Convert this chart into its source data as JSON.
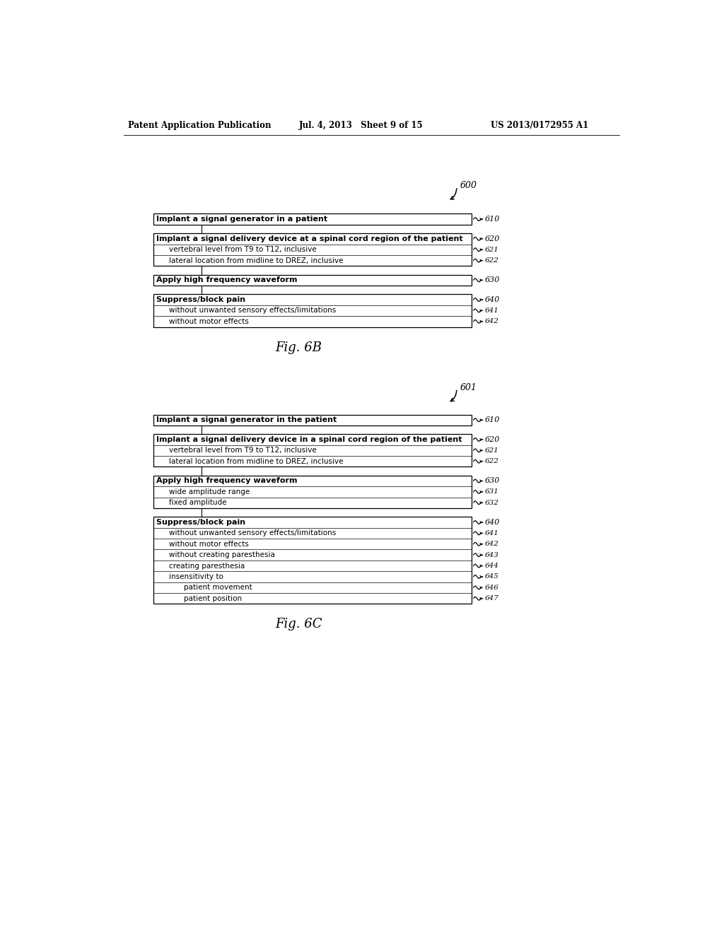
{
  "bg_color": "#ffffff",
  "header_left": "Patent Application Publication",
  "header_mid": "Jul. 4, 2013   Sheet 9 of 15",
  "header_right": "US 2013/0172955 A1",
  "fig6b_label": "Fig. 6B",
  "fig6b_ref": "600",
  "fig6b_boxes": [
    {
      "label": "Implant a signal generator in a patient",
      "ref": "610",
      "level": 0,
      "bold": true
    },
    {
      "label": "Implant a signal delivery device at a spinal cord region of the patient",
      "ref": "620",
      "level": 0,
      "bold": true
    },
    {
      "label": "vertebral level from T9 to T12, inclusive",
      "ref": "621",
      "level": 1,
      "bold": false
    },
    {
      "label": "lateral location from midline to DREZ, inclusive",
      "ref": "622",
      "level": 1,
      "bold": false
    },
    {
      "label": "Apply high frequency waveform",
      "ref": "630",
      "level": 0,
      "bold": true
    },
    {
      "label": "Suppress/block pain",
      "ref": "640",
      "level": 0,
      "bold": true
    },
    {
      "label": "without unwanted sensory effects/limitations",
      "ref": "641",
      "level": 1,
      "bold": false
    },
    {
      "label": "without motor effects",
      "ref": "642",
      "level": 1,
      "bold": false
    }
  ],
  "fig6c_label": "Fig. 6C",
  "fig6c_ref": "601",
  "fig6c_boxes": [
    {
      "label": "Implant a signal generator in the patient",
      "ref": "610",
      "level": 0,
      "bold": true
    },
    {
      "label": "Implant a signal delivery device in a spinal cord region of the patient",
      "ref": "620",
      "level": 0,
      "bold": true
    },
    {
      "label": "vertebral level from T9 to T12, inclusive",
      "ref": "621",
      "level": 1,
      "bold": false
    },
    {
      "label": "lateral location from midline to DREZ, inclusive",
      "ref": "622",
      "level": 1,
      "bold": false
    },
    {
      "label": "Apply high frequency waveform",
      "ref": "630",
      "level": 0,
      "bold": true
    },
    {
      "label": "wide amplitude range",
      "ref": "631",
      "level": 1,
      "bold": false
    },
    {
      "label": "fixed amplitude",
      "ref": "632",
      "level": 1,
      "bold": false
    },
    {
      "label": "Suppress/block pain",
      "ref": "640",
      "level": 0,
      "bold": true
    },
    {
      "label": "without unwanted sensory effects/limitations",
      "ref": "641",
      "level": 1,
      "bold": false
    },
    {
      "label": "without motor effects",
      "ref": "642",
      "level": 1,
      "bold": false
    },
    {
      "label": "without creating paresthesia",
      "ref": "643",
      "level": 1,
      "bold": false
    },
    {
      "label": "creating paresthesia",
      "ref": "644",
      "level": 1,
      "bold": false
    },
    {
      "label": "insensitivity to",
      "ref": "645",
      "level": 1,
      "bold": false
    },
    {
      "label": "patient movement",
      "ref": "646",
      "level": 2,
      "bold": false
    },
    {
      "label": "patient position",
      "ref": "647",
      "level": 2,
      "bold": false
    }
  ]
}
